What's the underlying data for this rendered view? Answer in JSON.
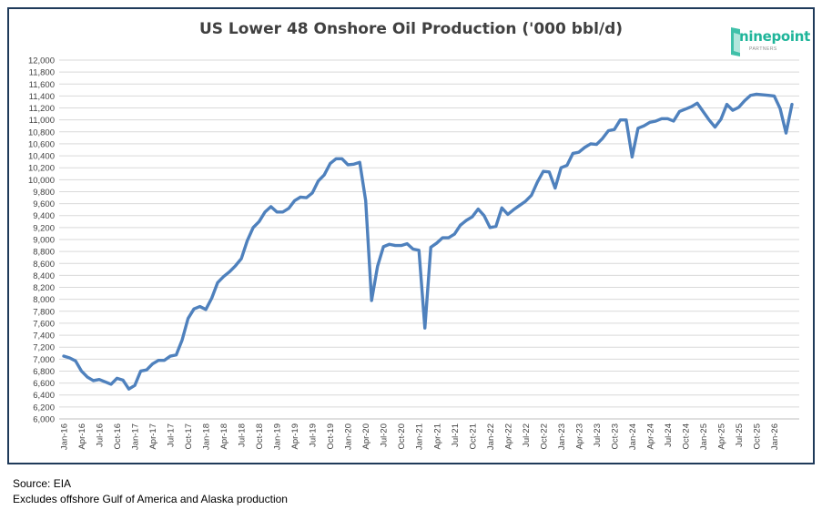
{
  "chart_data": {
    "type": "line",
    "title": "US Lower 48 Onshore Oil Production ('000 bbl/d)",
    "ylim": [
      6000,
      12000
    ],
    "ytick_step": 200,
    "grid": true,
    "line_color": "#4f81bd",
    "x_labels": [
      "Jan-16",
      "Apr-16",
      "Jul-16",
      "Oct-16",
      "Jan-17",
      "Apr-17",
      "Jul-17",
      "Oct-17",
      "Jan-18",
      "Apr-18",
      "Jul-18",
      "Oct-18",
      "Jan-19",
      "Apr-19",
      "Jul-19",
      "Oct-19",
      "Jan-20",
      "Apr-20",
      "Jul-20",
      "Oct-20",
      "Jan-21",
      "Apr-21",
      "Jul-21",
      "Oct-21",
      "Jan-22",
      "Apr-22",
      "Jul-22",
      "Oct-22",
      "Jan-23",
      "Apr-23",
      "Jul-23",
      "Oct-23",
      "Jan-24",
      "Apr-24",
      "Jul-24",
      "Oct-24",
      "Jan-25",
      "Apr-25",
      "Jul-25",
      "Oct-25",
      "Jan-26"
    ],
    "series": [
      {
        "values": [
          7050,
          7020,
          6970,
          6800,
          6700,
          6640,
          6660,
          6620,
          6580,
          6680,
          6650,
          6500,
          6560,
          6800,
          6820,
          6920,
          6980,
          6980,
          7050,
          7070,
          7320,
          7680,
          7840,
          7880,
          7830,
          8020,
          8280,
          8380,
          8460,
          8560,
          8680,
          8980,
          9200,
          9300,
          9460,
          9550,
          9460,
          9460,
          9520,
          9650,
          9710,
          9700,
          9780,
          9980,
          10080,
          10270,
          10350,
          10350,
          10250,
          10260,
          10290,
          9650,
          7980,
          8550,
          8880,
          8920,
          8900,
          8900,
          8930,
          8840,
          8820,
          7520,
          8870,
          8940,
          9030,
          9030,
          9090,
          9240,
          9320,
          9380,
          9510,
          9400,
          9200,
          9220,
          9530,
          9420,
          9500,
          9570,
          9640,
          9740,
          9960,
          10140,
          10130,
          9860,
          10200,
          10240,
          10440,
          10460,
          10540,
          10600,
          10590,
          10690,
          10820,
          10840,
          11000,
          11000,
          10380,
          10860,
          10900,
          10960,
          10980,
          11020,
          11020,
          10980,
          11140,
          11180,
          11220,
          11280,
          11140,
          11000,
          10880,
          11010,
          11260,
          11160,
          11210,
          11320,
          11410,
          11430,
          11420,
          11410,
          11400,
          11190,
          10780,
          11260
        ]
      }
    ]
  },
  "source": "Source: EIA",
  "note": "Excludes offshore Gulf of America and Alaska production",
  "logo": {
    "name": "ninepoint",
    "tagline": "PARTNERS"
  }
}
